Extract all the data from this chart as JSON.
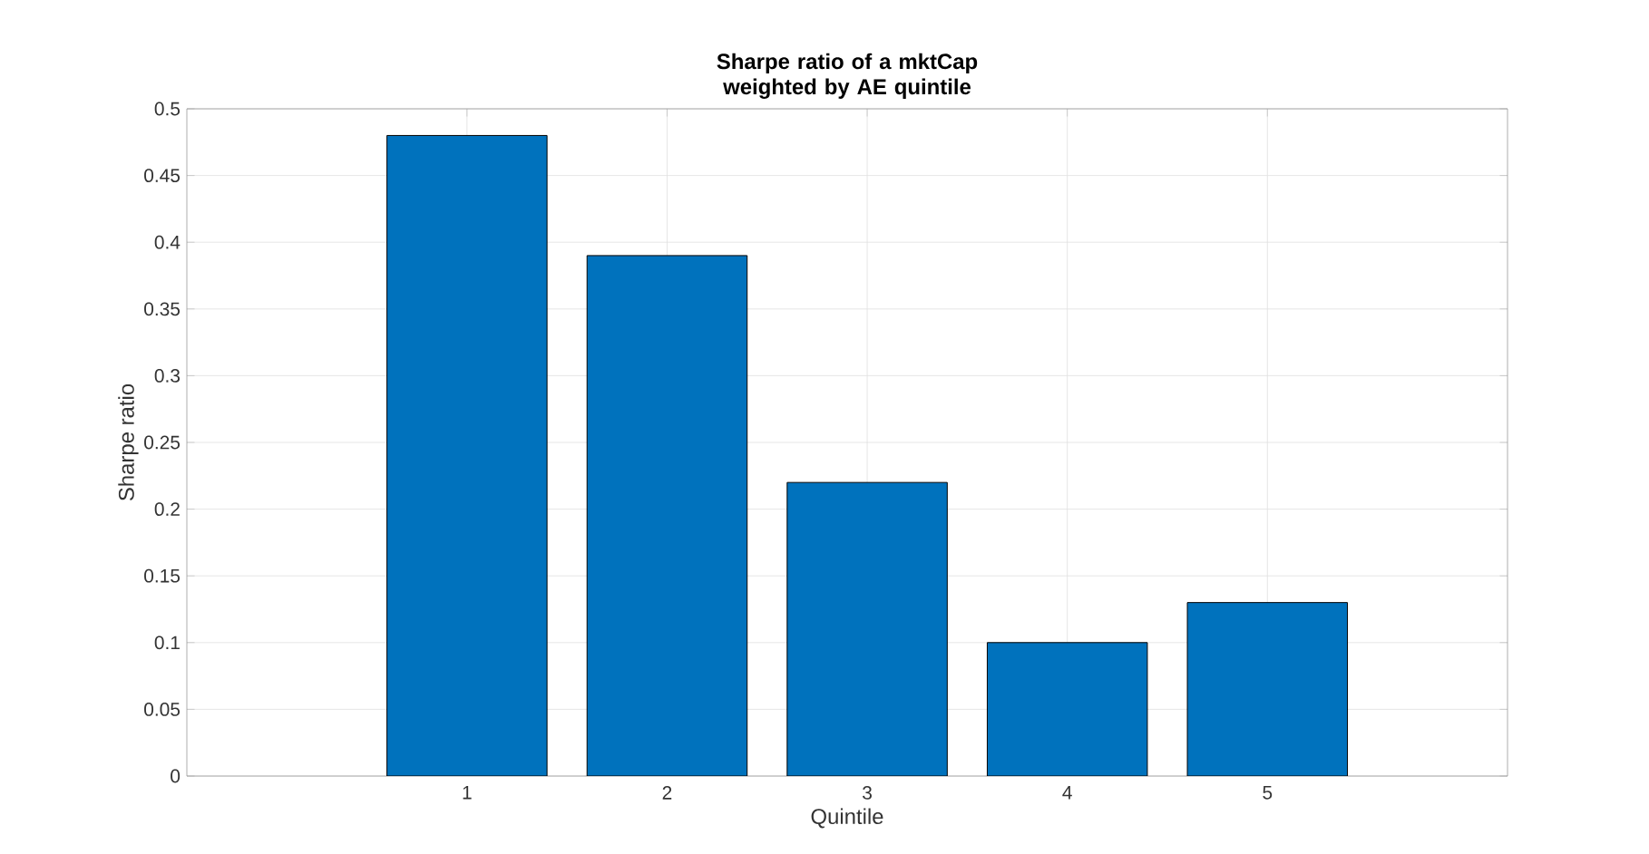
{
  "chart_data": {
    "type": "bar",
    "title": "Sharpe ratio of a mktCap weighted by AE quintile",
    "xlabel": "Quintile",
    "ylabel": "Sharpe ratio",
    "x": [
      1,
      2,
      3,
      4,
      5
    ],
    "values": [
      0.48,
      0.39,
      0.22,
      0.1,
      0.13
    ],
    "color": "#0072bd",
    "xlim": [
      -0.4,
      6.2
    ],
    "xticks": [
      1,
      2,
      3,
      4,
      5
    ],
    "ylim": [
      0,
      0.5
    ],
    "yticks": [
      0,
      0.05,
      0.1,
      0.15,
      0.2,
      0.25,
      0.3,
      0.35,
      0.4,
      0.45,
      0.5
    ],
    "grid": true
  }
}
